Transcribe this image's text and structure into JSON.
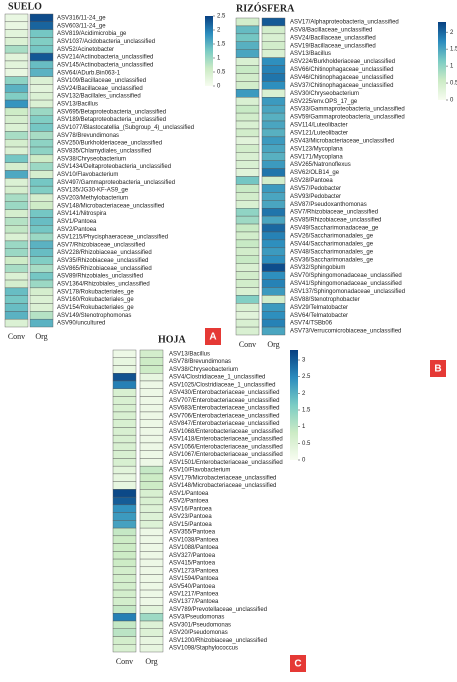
{
  "chart_data": [
    {
      "type": "heatmap",
      "title": "SUELO",
      "panel_label": "A",
      "categories": [
        "ASV316/11-24_ge",
        "ASV603/11-24_ge",
        "ASV819/Acidimicrobia_ge",
        "ASV1037/Acidobacteria_unclassified",
        "ASV52/Acinetobacter",
        "ASV214/Actinobacteria_unclassified",
        "ASV145/Actinobacteria_unclassified",
        "ASV64/ADurb.Bin063-1",
        "ASV109/Bacillaceae_unclassified",
        "ASV24/Bacillaceae_unclassified",
        "ASV132/Bacillales_unclassified",
        "ASV13/Bacillus",
        "ASV695/Betaproteobacteria_unclassified",
        "ASV189/Betaproteobacteria_unclassified",
        "ASV1077/Blastocatellia_(Subgroup_4)_unclassified",
        "ASV78/Brevundimonas",
        "ASV250/Burkholderiaceae_unclassified",
        "ASV835/Chlamydiales_unclassified",
        "ASV38/Chryseobacterium",
        "ASV1434/Deltaproteobacteria_unclassified",
        "ASV10/Flavobacterium",
        "ASV497/Gammaproteobacteria_unclassified",
        "ASV135/JG30-KF-AS9_ge",
        "ASV203/Methylobacterium",
        "ASV148/Microbacteriaceae_unclassified",
        "ASV141/Nitrospira",
        "ASV1/Pantoea",
        "ASV2/Pantoea",
        "ASV1215/Phycisphaeraceae_unclassified",
        "ASV7/Rhizobiaceae_unclassified",
        "ASV228/Rhizobiaceae_unclassified",
        "ASV35/Rhizobiaceae_unclassified",
        "ASV865/Rhizobiaceae_unclassified",
        "ASV89/Rhizobiales_unclassified",
        "ASV1364/Rhizobiales_unclassified",
        "ASV178/Rokubacteriales_ge",
        "ASV160/Rokubacteriales_ge",
        "ASV154/Rokubacteriales_ge",
        "ASV149/Stenotrophomonas",
        "ASV90/uncultured"
      ],
      "series": [
        {
          "name": "Conv",
          "values": [
            0.2,
            0.2,
            0.3,
            0.4,
            0.9,
            0.3,
            0.3,
            0.2,
            1.1,
            1.5,
            1.2,
            1.8,
            0.6,
            0.5,
            0.4,
            0.9,
            0.5,
            0.4,
            1.3,
            0.5,
            1.6,
            0.4,
            0.5,
            0.9,
            1.0,
            0.5,
            0.8,
            0.7,
            0.4,
            1.0,
            1.0,
            0.6,
            0.9,
            0.4,
            0.5,
            1.4,
            1.3,
            1.4,
            1.5,
            0.4
          ]
        },
        {
          "name": "Org",
          "values": [
            2.4,
            2.2,
            1.3,
            1.2,
            1.3,
            2.3,
            1.4,
            1.5,
            0.4,
            0.3,
            0.4,
            0.4,
            1.0,
            1.2,
            1.3,
            0.9,
            1.1,
            1.1,
            0.6,
            1.0,
            0.5,
            1.3,
            1.2,
            0.5,
            0.6,
            1.3,
            1.4,
            1.3,
            1.0,
            1.5,
            1.4,
            1.2,
            0.9,
            1.3,
            1.0,
            0.5,
            0.4,
            0.4,
            0.8,
            1.5
          ]
        }
      ],
      "zlim": [
        0,
        2.5
      ],
      "zticks": [
        0,
        0.5,
        1,
        1.5,
        2,
        2.5
      ],
      "colorscale": [
        "#f7fcf0",
        "#ccebc5",
        "#7bccc4",
        "#2b8cbe",
        "#084081"
      ]
    },
    {
      "type": "heatmap",
      "title": "RIZÓSFERA",
      "panel_label": "B",
      "categories": [
        "ASV17/Alphaproteobacteria_unclassified",
        "ASV8/Bacillaceae_unclassified",
        "ASV24/Bacillaceae_unclassified",
        "ASV19/Bacillaceae_unclassified",
        "ASV13/Bacillus",
        "ASV224/Burkholderiaceae_unclassified",
        "ASV66/Chitinophagaceae_unclassified",
        "ASV46/Chitinophagaceae_unclassified",
        "ASV37/Chitinophagaceae_unclassified",
        "ASV30/Chryseobacterium",
        "ASV225/env.OPS_17_ge",
        "ASV33/Gammaproteobacteria_unclassified",
        "ASV59/Gammaproteobacteria_unclassified",
        "ASV114/Luteolibacter",
        "ASV121/Luteolibacter",
        "ASV43/Microbacteriaceae_unclassified",
        "ASV123/Mycoplana",
        "ASV171/Mycoplana",
        "ASV265/Natronoflexus",
        "ASV62/OLB14_ge",
        "ASV28/Pantoea",
        "ASV57/Pedobacter",
        "ASV93/Pedobacter",
        "ASV87/Pseudoxanthomonas",
        "ASV7/Rhizobiaceae_unclassified",
        "ASV85/Rhizobiaceae_unclassified",
        "ASV49/Saccharimonadaceae_ge",
        "ASV26/Saccharimonadales_ge",
        "ASV44/Saccharimonadales_ge",
        "ASV48/Saccharimonadales_ge",
        "ASV36/Saccharimonadales_ge",
        "ASV32/Sphingobium",
        "ASV70/Sphingomonadaceae_unclassified",
        "ASV41/Sphingomonadaceae_unclassified",
        "ASV137/Sphingomonadaceae_unclassified",
        "ASV88/Stenotrophobacter",
        "ASV29/Telmatobacter",
        "ASV64/Telmatobacter",
        "ASV74/TSBb06",
        "ASV73/Verrucomicrobiaceae_unclassified"
      ],
      "series": [
        {
          "name": "Conv",
          "values": [
            0.5,
            1.3,
            1.2,
            1.4,
            1.5,
            0.4,
            0.6,
            0.5,
            0.5,
            1.6,
            0.4,
            0.6,
            0.5,
            0.4,
            0.5,
            0.3,
            0.5,
            0.4,
            0.4,
            0.3,
            1.2,
            0.6,
            0.5,
            0.4,
            1.0,
            0.9,
            0.6,
            0.5,
            0.6,
            0.5,
            0.6,
            0.4,
            0.5,
            0.5,
            0.4,
            1.1,
            0.4,
            0.3,
            0.4,
            0.4
          ]
        },
        {
          "name": "Org",
          "values": [
            2.1,
            0.5,
            0.4,
            0.5,
            0.4,
            1.7,
            1.8,
            1.9,
            1.7,
            0.4,
            1.6,
            1.5,
            1.4,
            1.5,
            1.4,
            1.6,
            1.5,
            1.4,
            1.6,
            1.9,
            0.5,
            1.6,
            1.5,
            1.5,
            1.9,
            1.5,
            2.0,
            1.8,
            1.7,
            1.6,
            1.7,
            2.2,
            1.7,
            1.8,
            1.6,
            0.5,
            1.6,
            1.7,
            1.8,
            1.5
          ]
        }
      ],
      "zlim": [
        0,
        2.3
      ],
      "zticks": [
        0,
        0.5,
        1,
        1.5,
        2
      ],
      "colorscale": [
        "#f7fcf0",
        "#ccebc5",
        "#7bccc4",
        "#2b8cbe",
        "#084081"
      ]
    },
    {
      "type": "heatmap",
      "title": "HOJA",
      "panel_label": "C",
      "categories": [
        "ASV13/Bacillus",
        "ASV78/Brevundimonas",
        "ASV38/Chryseobacterium",
        "ASV4/Clostridiaceae_1_unclassified",
        "ASV1025/Clostridiaceae_1_unclassified",
        "ASV430/Enterobacteriaceae_unclassified",
        "ASV707/Enterobacteriaceae_unclassified",
        "ASV683/Enterobacteriaceae_unclassified",
        "ASV706/Enterobacteriaceae_unclassified",
        "ASV847/Enterobacteriaceae_unclassified",
        "ASV1068/Enterobacteriaceae_unclassified",
        "ASV1418/Enterobacteriaceae_unclassified",
        "ASV1056/Enterobacteriaceae_unclassified",
        "ASV1067/Enterobacteriaceae_unclassified",
        "ASV1501/Enterobacteriaceae_unclassified",
        "ASV10/Flavobacterium",
        "ASV179/Microbacteriaceae_unclassified",
        "ASV148/Microbacteriaceae_unclassified",
        "ASV1/Pantoea",
        "ASV2/Pantoea",
        "ASV16/Pantoea",
        "ASV23/Pantoea",
        "ASV15/Pantoea",
        "ASV355/Pantoea",
        "ASV1038/Pantoea",
        "ASV1088/Pantoea",
        "ASV327/Pantoea",
        "ASV415/Pantoea",
        "ASV1273/Pantoea",
        "ASV1594/Pantoea",
        "ASV540/Pantoea",
        "ASV1217/Pantoea",
        "ASV1377/Pantoea",
        "ASV789/Prevotellaceae_unclassified",
        "ASV3/Pseudomonas",
        "ASV301/Pseudomonas",
        "ASV20/Pseudomonas",
        "ASV1200/Rhizobiaceae_unclassified",
        "ASV1098/Staphylococcus"
      ],
      "series": [
        {
          "name": "Conv",
          "values": [
            0.2,
            0.3,
            0.3,
            3.1,
            2.6,
            0.6,
            0.6,
            0.6,
            0.6,
            0.6,
            0.6,
            0.6,
            0.6,
            0.6,
            0.6,
            0.4,
            0.3,
            0.3,
            3.2,
            3.0,
            2.4,
            2.3,
            2.2,
            0.9,
            0.8,
            0.8,
            0.8,
            0.8,
            0.7,
            0.7,
            0.7,
            0.7,
            0.7,
            0.9,
            2.6,
            0.9,
            1.0,
            0.7,
            0.6
          ]
        },
        {
          "name": "Org",
          "values": [
            0.7,
            0.8,
            0.8,
            0.3,
            0.2,
            0.2,
            0.2,
            0.2,
            0.2,
            0.2,
            0.2,
            0.2,
            0.2,
            0.2,
            0.2,
            0.9,
            0.8,
            0.8,
            0.6,
            0.6,
            0.5,
            0.5,
            0.5,
            0.2,
            0.2,
            0.2,
            0.2,
            0.2,
            0.2,
            0.2,
            0.2,
            0.2,
            0.2,
            0.4,
            1.3,
            0.5,
            0.5,
            0.3,
            0.3
          ]
        }
      ],
      "zlim": [
        0,
        3.3
      ],
      "zticks": [
        0,
        0.5,
        1,
        1.5,
        2,
        2.5,
        3
      ],
      "colorscale": [
        "#f7fcf0",
        "#ccebc5",
        "#7bccc4",
        "#2b8cbe",
        "#084081"
      ]
    }
  ]
}
